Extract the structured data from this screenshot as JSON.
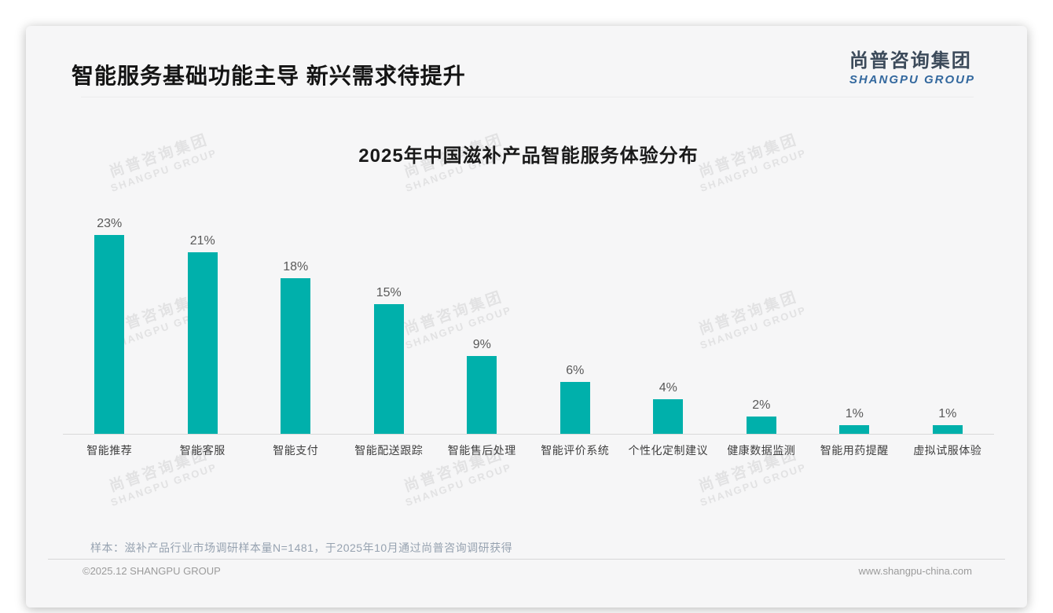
{
  "page": {
    "header_title": "智能服务基础功能主导 新兴需求待提升",
    "logo": {
      "cn": "尚普咨询集团",
      "en": "SHANGPU GROUP"
    },
    "watermark": {
      "cn": "尚普咨询集团",
      "en": "SHANGPU GROUP"
    },
    "footnote": "样本：滋补产品行业市场调研样本量N=1481，于2025年10月通过尚普咨询调研获得",
    "footer_left": "©2025.12 SHANGPU GROUP",
    "footer_right": "www.shangpu-china.com"
  },
  "colors": {
    "bar": "#00b0ab",
    "logo_cn": "#3c4a5a",
    "logo_en": "#33689e",
    "value_label": "#595959",
    "category_label": "#3f3f3f"
  },
  "chart_data": {
    "type": "bar",
    "title": "2025年中国滋补产品智能服务体验分布",
    "categories": [
      "智能推荐",
      "智能客服",
      "智能支付",
      "智能配送跟踪",
      "智能售后处理",
      "智能评价系统",
      "个性化定制建议",
      "健康数据监测",
      "智能用药提醒",
      "虚拟试服体验"
    ],
    "values": [
      23,
      21,
      18,
      15,
      9,
      6,
      4,
      2,
      1,
      1
    ],
    "value_suffix": "%",
    "xlabel": "",
    "ylabel": "",
    "ylim": [
      0,
      25
    ],
    "grid": false,
    "legend": "none",
    "bar_color": "#00b0ab"
  }
}
